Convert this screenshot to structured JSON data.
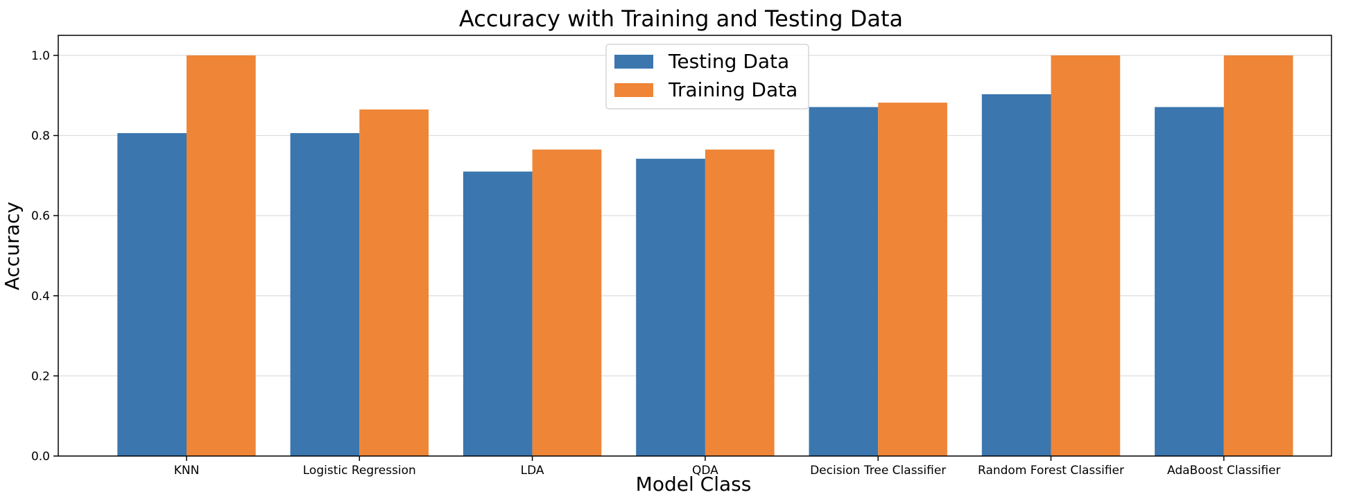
{
  "chart_data": {
    "type": "bar",
    "title": "Accuracy with Training and Testing Data",
    "xlabel": "Model Class",
    "ylabel": "Accuracy",
    "categories": [
      "KNN",
      "Logistic Regression",
      "LDA",
      "QDA",
      "Decision Tree Classifier",
      "Random Forest Classifier",
      "AdaBoost Classifier"
    ],
    "series": [
      {
        "name": "Testing Data",
        "color": "#3b76af",
        "values": [
          0.806,
          0.806,
          0.71,
          0.742,
          0.871,
          0.903,
          0.871
        ]
      },
      {
        "name": "Training Data",
        "color": "#ef8536",
        "values": [
          1.0,
          0.865,
          0.765,
          0.765,
          0.882,
          1.0,
          1.0
        ]
      }
    ],
    "ylim": [
      0,
      1.05
    ],
    "yticks": [
      0.0,
      0.2,
      0.4,
      0.6,
      0.8,
      1.0
    ],
    "ytick_labels": [
      "0.0",
      "0.2",
      "0.4",
      "0.6",
      "0.8",
      "1.0"
    ],
    "grid": "horizontal",
    "legend_position": "top-center"
  }
}
